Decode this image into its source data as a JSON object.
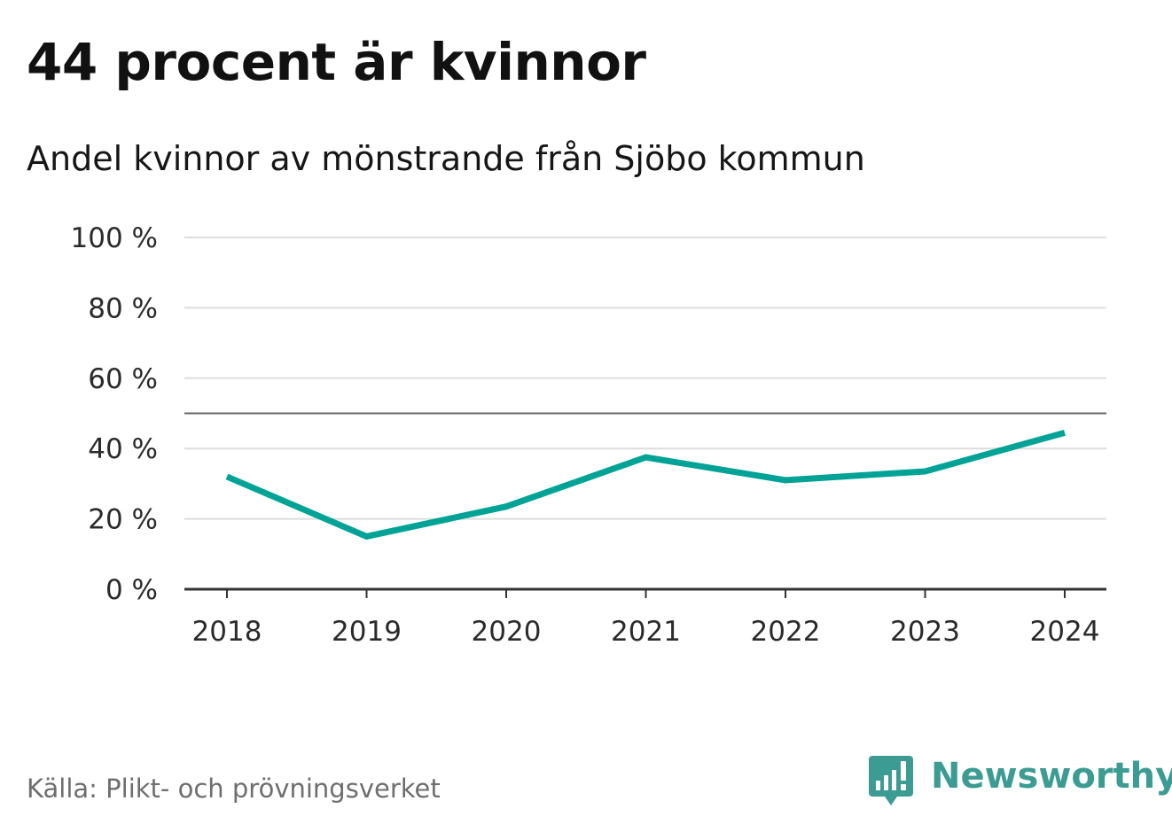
{
  "header": {
    "title": "44 procent är kvinnor",
    "subtitle": "Andel kvinnor av mönstrande från Sjöbo kommun"
  },
  "footer": {
    "source": "Källa: Plikt- och prövningsverket",
    "brand": "Newsworthy",
    "brand_icon": "bar-chart-speech-bubble-icon"
  },
  "colors": {
    "series": "#00a396",
    "grid": "#dddddd",
    "reference_line": "#666666",
    "axis": "#333333",
    "brand": "#3c9c94"
  },
  "chart_data": {
    "type": "line",
    "title": "44 procent är kvinnor",
    "subtitle": "Andel kvinnor av mönstrande från Sjöbo kommun",
    "x": [
      "2018",
      "2019",
      "2020",
      "2021",
      "2022",
      "2023",
      "2024"
    ],
    "series": [
      {
        "values": [
          32,
          15,
          23.5,
          37.5,
          31,
          33.5,
          44.5
        ]
      }
    ],
    "yticks": [
      0,
      20,
      40,
      60,
      80,
      100
    ],
    "ytick_labels": [
      "0 %",
      "20 %",
      "40 %",
      "60 %",
      "80 %",
      "100 %"
    ],
    "ylim": [
      0,
      100
    ],
    "reference_line": 50,
    "grid": true,
    "legend": "none"
  }
}
